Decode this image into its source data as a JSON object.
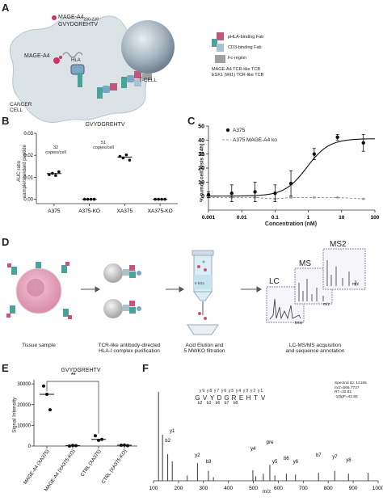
{
  "panels": {
    "A": {
      "label": "A",
      "mage_label": "MAGE-A4",
      "mage_range": "230-239",
      "peptide": "GVYDGREHTV",
      "mage_cell": "MAGE-A4",
      "hla": "HLA",
      "cancer_cell": [
        "CANCER",
        "CELL"
      ],
      "tcell": "T-CELL",
      "legend": [
        "pHLA-binding Fab",
        "CD3-binding Fab",
        "Fc-region"
      ],
      "formats": [
        "MAGE-A4 TCR-like TCB",
        "ESK1 (Wt1) TCR-like TCB"
      ]
    },
    "B": {
      "label": "B",
      "title": "GVYDGREHTV",
      "ylabel": [
        "AUC ratio",
        "sample/standard peptide"
      ],
      "annotations": [
        {
          "lines": [
            "32",
            "copies/cell"
          ],
          "category": "A375"
        },
        {
          "lines": [
            "51",
            "copies/cell"
          ],
          "category": "XA375"
        }
      ]
    },
    "C": {
      "label": "C",
      "ylabel": "% tumor cell lysis [24h]",
      "xlabel": "Concentration (nM)",
      "legend": [
        "A375",
        "A375 MAGE-A4 ko"
      ]
    },
    "D": {
      "label": "D",
      "steps": [
        [
          "Tissue sample"
        ],
        [
          "TCR-like antibody-directed",
          "HLA-I complex purification"
        ],
        [
          "Acid Elution and",
          "5 MWKO filtration"
        ],
        [
          "LC-MS/MS acquisition",
          "and sequence annotation"
        ]
      ],
      "lc": "LC",
      "ms": "MS",
      "ms2": "MS2",
      "tube": "5 kDa",
      "axis": "m/z",
      "axis2": "time"
    },
    "E": {
      "label": "E",
      "title": "GVYDGREHTV",
      "sig": "**",
      "ylabel": "Signal Intensity"
    },
    "F": {
      "label": "F",
      "sequence": [
        "G",
        "V",
        "Y",
        "D",
        "G",
        "R",
        "E",
        "H",
        "T",
        "V"
      ],
      "y_ions": [
        "y9",
        "y8",
        "y7",
        "y6",
        "y5",
        "y4",
        "y3",
        "y2",
        "y1"
      ],
      "b_ions": [
        "b2",
        "b3",
        "b6",
        "b7",
        "b8"
      ],
      "info": [
        "Spectral ID: 12185",
        "m/z=566.7737",
        "RT=32.81",
        "-10lgP=42.65"
      ],
      "xlabel": "m/z",
      "peaks": [
        {
          "label": "y1",
          "mz": 175.12
        },
        {
          "label": "b2",
          "mz": 157.1
        },
        {
          "label": "y2",
          "mz": 276.16
        },
        {
          "label": "b3",
          "mz": 320.17
        },
        {
          "label": "y4",
          "mz": 498.72
        },
        {
          "label": "pre",
          "mz": 566.77
        },
        {
          "label": "y5",
          "mz": 586.3
        },
        {
          "label": "b6",
          "mz": 632.3
        },
        {
          "label": "b7",
          "mz": 761.35
        },
        {
          "label": "y6",
          "mz": 669.33
        },
        {
          "label": "y7",
          "mz": 826.4
        },
        {
          "label": "y8",
          "mz": 881.43
        }
      ]
    }
  },
  "chart_data": [
    {
      "panel": "B",
      "type": "scatter",
      "title": "GVYDGREHTV",
      "categories": [
        "A375",
        "A375-KO",
        "XA375",
        "XA375-KO"
      ],
      "points": [
        {
          "category": "A375",
          "values": [
            0.0112,
            0.0118,
            0.0108,
            0.0125
          ],
          "median": 0.0117
        },
        {
          "category": "A375-KO",
          "values": [
            0,
            0,
            0,
            0
          ],
          "median": 0
        },
        {
          "category": "XA375",
          "values": [
            0.0195,
            0.0188,
            0.0202,
            0.0178
          ],
          "median": 0.0192
        },
        {
          "category": "XA375-KO",
          "values": [
            0,
            0,
            0,
            0
          ],
          "median": 0
        }
      ],
      "ylim": [
        -0.002,
        0.03
      ],
      "yticks": [
        0.0,
        0.01,
        0.02,
        0.03
      ],
      "ytick_labels": [
        "0.00",
        "0.01",
        "0.02",
        "0.03"
      ],
      "ylabel": "AUC ratio sample/standard peptide"
    },
    {
      "panel": "C",
      "type": "line",
      "xscale": "log",
      "x": [
        0.001,
        0.005,
        0.025,
        0.1,
        0.3,
        1.5,
        7.5,
        45
      ],
      "xticks": [
        0.001,
        0.01,
        0.1,
        1,
        10,
        100
      ],
      "xtick_labels": [
        "0.001",
        "0.01",
        "0.1",
        "1",
        "10",
        "100"
      ],
      "ylim": [
        -10,
        50
      ],
      "yticks": [
        0,
        10,
        20,
        30,
        40,
        50
      ],
      "series": [
        {
          "name": "A375",
          "values": [
            1,
            2,
            3,
            2,
            9,
            30,
            42,
            38
          ],
          "errors": [
            2,
            6,
            7,
            6,
            9,
            4,
            2,
            6
          ]
        },
        {
          "name": "A375 MAGE-A4 ko",
          "values": [
            -1,
            -1,
            -1,
            -2,
            -1,
            -1,
            -1,
            -2
          ],
          "errors": [
            1,
            1,
            1,
            1,
            1,
            1,
            1,
            1
          ]
        }
      ],
      "ylabel": "% tumor cell lysis [24h]",
      "xlabel": "Concentration (nM)"
    },
    {
      "panel": "E",
      "type": "scatter",
      "title": "GVYDGREHTV",
      "categories": [
        "MAGE-A4 (XA375)",
        "MAGE-A4 (XA375-KO)",
        "CTRL (XA375)",
        "CTRL (XA375-KO)"
      ],
      "points": [
        {
          "category": "MAGE-A4 (XA375)",
          "values": [
            29000,
            25000,
            17500
          ],
          "median": 25000
        },
        {
          "category": "MAGE-A4 (XA375-KO)",
          "values": [
            0,
            300,
            200
          ],
          "median": 200
        },
        {
          "category": "CTRL (XA375)",
          "values": [
            5000,
            2800,
            3200
          ],
          "median": 3200
        },
        {
          "category": "CTRL (XA375-KO)",
          "values": [
            400,
            500,
            200
          ],
          "median": 400
        }
      ],
      "ylim": [
        0,
        32000
      ],
      "yticks": [
        0,
        10000,
        20000,
        30000
      ],
      "ylabel": "Signal Intensity"
    },
    {
      "panel": "F",
      "type": "bar",
      "xlabel": "m/z",
      "xlim": [
        100,
        1000
      ],
      "xticks": [
        100,
        200,
        300,
        400,
        500,
        600,
        700,
        800,
        900,
        1000
      ],
      "ylim": [
        0,
        100
      ],
      "bars": [
        {
          "mz": 120,
          "rel": 100
        },
        {
          "mz": 136,
          "rel": 52
        },
        {
          "mz": 157,
          "rel": 30
        },
        {
          "mz": 175,
          "rel": 22
        },
        {
          "mz": 235,
          "rel": 6
        },
        {
          "mz": 276,
          "rel": 20
        },
        {
          "mz": 320,
          "rel": 11
        },
        {
          "mz": 340,
          "rel": 4
        },
        {
          "mz": 498,
          "rel": 12
        },
        {
          "mz": 510,
          "rel": 5
        },
        {
          "mz": 540,
          "rel": 8
        },
        {
          "mz": 566,
          "rel": 18
        },
        {
          "mz": 586,
          "rel": 6
        },
        {
          "mz": 632,
          "rel": 8
        },
        {
          "mz": 669,
          "rel": 7
        },
        {
          "mz": 761,
          "rel": 9
        },
        {
          "mz": 826,
          "rel": 11
        },
        {
          "mz": 881,
          "rel": 8
        },
        {
          "mz": 960,
          "rel": 9
        }
      ]
    }
  ]
}
